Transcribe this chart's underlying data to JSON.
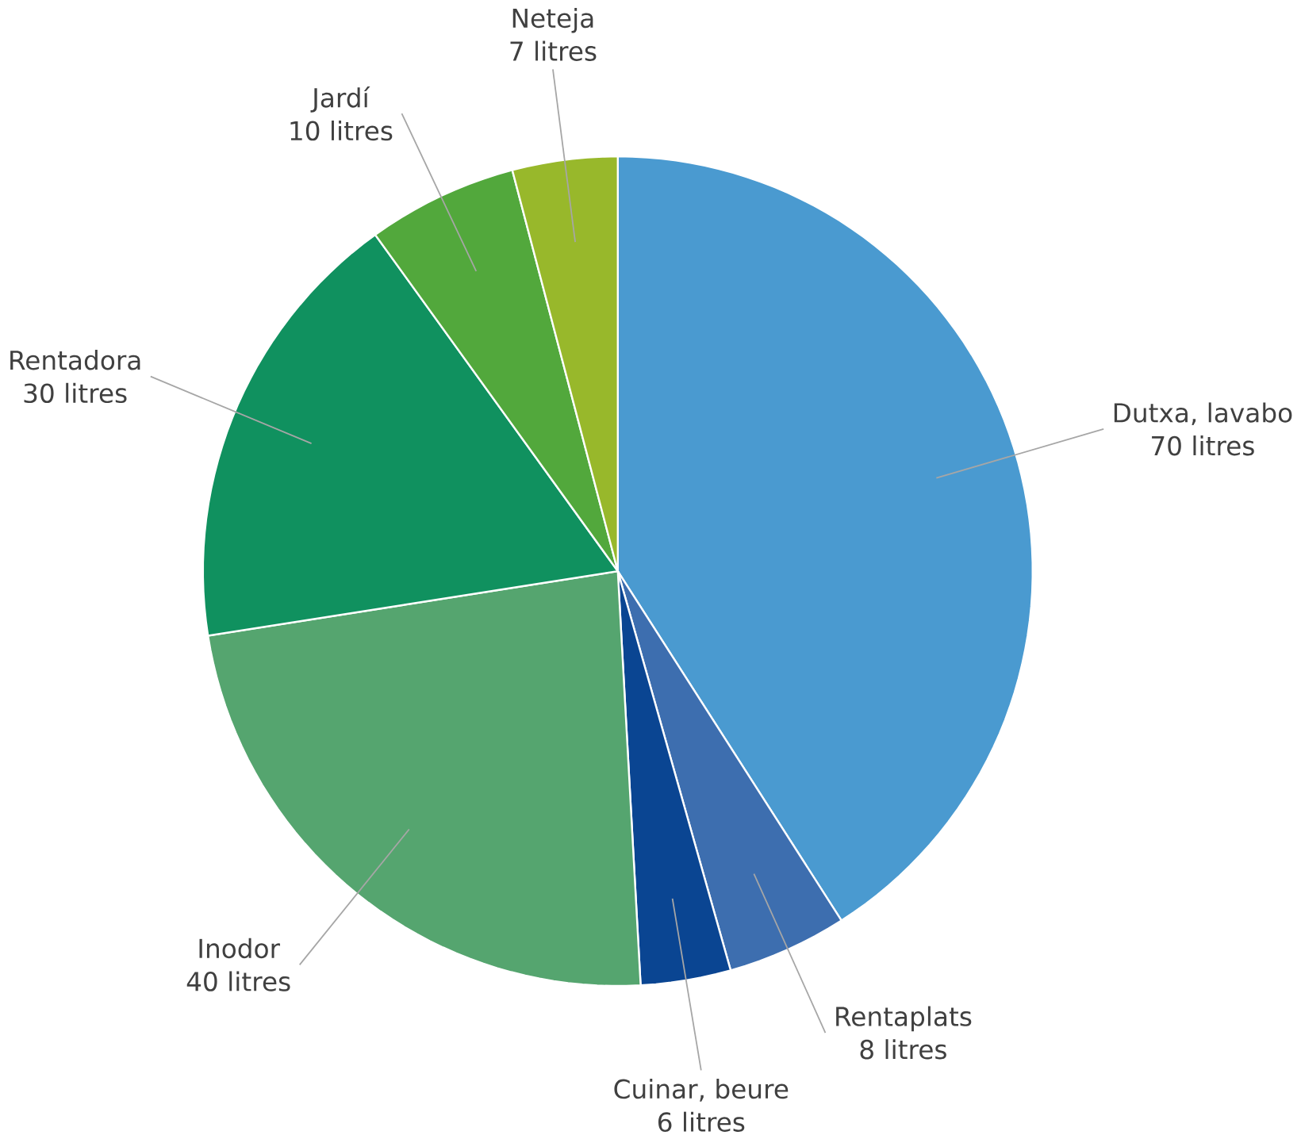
{
  "chart_data": {
    "type": "pie",
    "categories": [
      "Dutxa, lavabo",
      "Rentaplats",
      "Cuinar, beure",
      "Inodor",
      "Rentadora",
      "Jardí",
      "Neteja"
    ],
    "values": [
      70,
      8,
      6,
      40,
      30,
      10,
      7
    ],
    "value_labels": [
      "70 litres",
      "8 litres",
      "6 litres",
      "40 litres",
      "30 litres",
      "10 litres",
      "7 litres"
    ],
    "colors": [
      "#4a9ad0",
      "#3d6eaf",
      "#0a4592",
      "#55a56f",
      "#10915f",
      "#52a83c",
      "#98b82b"
    ]
  }
}
